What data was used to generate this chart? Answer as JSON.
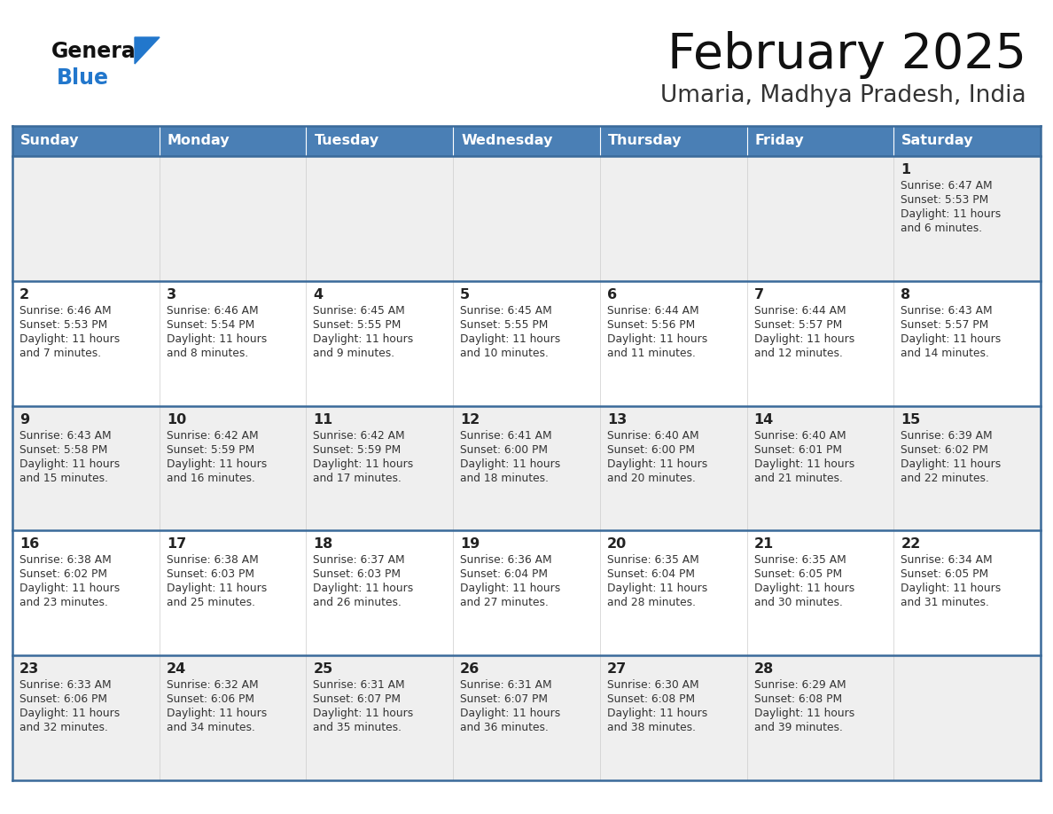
{
  "title": "February 2025",
  "subtitle": "Umaria, Madhya Pradesh, India",
  "days_of_week": [
    "Sunday",
    "Monday",
    "Tuesday",
    "Wednesday",
    "Thursday",
    "Friday",
    "Saturday"
  ],
  "header_bg": "#4a7fb5",
  "header_text": "#ffffff",
  "row_bg_odd": "#efefef",
  "row_bg_even": "#ffffff",
  "border_color": "#3a6a9a",
  "text_color": "#333333",
  "day_num_color": "#222222",
  "logo_general_color": "#111111",
  "logo_blue_color": "#2277cc",
  "calendar_data": [
    [
      {
        "day": null,
        "sunrise": null,
        "sunset": null,
        "daylight": null
      },
      {
        "day": null,
        "sunrise": null,
        "sunset": null,
        "daylight": null
      },
      {
        "day": null,
        "sunrise": null,
        "sunset": null,
        "daylight": null
      },
      {
        "day": null,
        "sunrise": null,
        "sunset": null,
        "daylight": null
      },
      {
        "day": null,
        "sunrise": null,
        "sunset": null,
        "daylight": null
      },
      {
        "day": null,
        "sunrise": null,
        "sunset": null,
        "daylight": null
      },
      {
        "day": 1,
        "sunrise": "6:47 AM",
        "sunset": "5:53 PM",
        "daylight": "11 hours and 6 minutes."
      }
    ],
    [
      {
        "day": 2,
        "sunrise": "6:46 AM",
        "sunset": "5:53 PM",
        "daylight": "11 hours and 7 minutes."
      },
      {
        "day": 3,
        "sunrise": "6:46 AM",
        "sunset": "5:54 PM",
        "daylight": "11 hours and 8 minutes."
      },
      {
        "day": 4,
        "sunrise": "6:45 AM",
        "sunset": "5:55 PM",
        "daylight": "11 hours and 9 minutes."
      },
      {
        "day": 5,
        "sunrise": "6:45 AM",
        "sunset": "5:55 PM",
        "daylight": "11 hours and 10 minutes."
      },
      {
        "day": 6,
        "sunrise": "6:44 AM",
        "sunset": "5:56 PM",
        "daylight": "11 hours and 11 minutes."
      },
      {
        "day": 7,
        "sunrise": "6:44 AM",
        "sunset": "5:57 PM",
        "daylight": "11 hours and 12 minutes."
      },
      {
        "day": 8,
        "sunrise": "6:43 AM",
        "sunset": "5:57 PM",
        "daylight": "11 hours and 14 minutes."
      }
    ],
    [
      {
        "day": 9,
        "sunrise": "6:43 AM",
        "sunset": "5:58 PM",
        "daylight": "11 hours and 15 minutes."
      },
      {
        "day": 10,
        "sunrise": "6:42 AM",
        "sunset": "5:59 PM",
        "daylight": "11 hours and 16 minutes."
      },
      {
        "day": 11,
        "sunrise": "6:42 AM",
        "sunset": "5:59 PM",
        "daylight": "11 hours and 17 minutes."
      },
      {
        "day": 12,
        "sunrise": "6:41 AM",
        "sunset": "6:00 PM",
        "daylight": "11 hours and 18 minutes."
      },
      {
        "day": 13,
        "sunrise": "6:40 AM",
        "sunset": "6:00 PM",
        "daylight": "11 hours and 20 minutes."
      },
      {
        "day": 14,
        "sunrise": "6:40 AM",
        "sunset": "6:01 PM",
        "daylight": "11 hours and 21 minutes."
      },
      {
        "day": 15,
        "sunrise": "6:39 AM",
        "sunset": "6:02 PM",
        "daylight": "11 hours and 22 minutes."
      }
    ],
    [
      {
        "day": 16,
        "sunrise": "6:38 AM",
        "sunset": "6:02 PM",
        "daylight": "11 hours and 23 minutes."
      },
      {
        "day": 17,
        "sunrise": "6:38 AM",
        "sunset": "6:03 PM",
        "daylight": "11 hours and 25 minutes."
      },
      {
        "day": 18,
        "sunrise": "6:37 AM",
        "sunset": "6:03 PM",
        "daylight": "11 hours and 26 minutes."
      },
      {
        "day": 19,
        "sunrise": "6:36 AM",
        "sunset": "6:04 PM",
        "daylight": "11 hours and 27 minutes."
      },
      {
        "day": 20,
        "sunrise": "6:35 AM",
        "sunset": "6:04 PM",
        "daylight": "11 hours and 28 minutes."
      },
      {
        "day": 21,
        "sunrise": "6:35 AM",
        "sunset": "6:05 PM",
        "daylight": "11 hours and 30 minutes."
      },
      {
        "day": 22,
        "sunrise": "6:34 AM",
        "sunset": "6:05 PM",
        "daylight": "11 hours and 31 minutes."
      }
    ],
    [
      {
        "day": 23,
        "sunrise": "6:33 AM",
        "sunset": "6:06 PM",
        "daylight": "11 hours and 32 minutes."
      },
      {
        "day": 24,
        "sunrise": "6:32 AM",
        "sunset": "6:06 PM",
        "daylight": "11 hours and 34 minutes."
      },
      {
        "day": 25,
        "sunrise": "6:31 AM",
        "sunset": "6:07 PM",
        "daylight": "11 hours and 35 minutes."
      },
      {
        "day": 26,
        "sunrise": "6:31 AM",
        "sunset": "6:07 PM",
        "daylight": "11 hours and 36 minutes."
      },
      {
        "day": 27,
        "sunrise": "6:30 AM",
        "sunset": "6:08 PM",
        "daylight": "11 hours and 38 minutes."
      },
      {
        "day": 28,
        "sunrise": "6:29 AM",
        "sunset": "6:08 PM",
        "daylight": "11 hours and 39 minutes."
      },
      {
        "day": null,
        "sunrise": null,
        "sunset": null,
        "daylight": null
      }
    ]
  ]
}
